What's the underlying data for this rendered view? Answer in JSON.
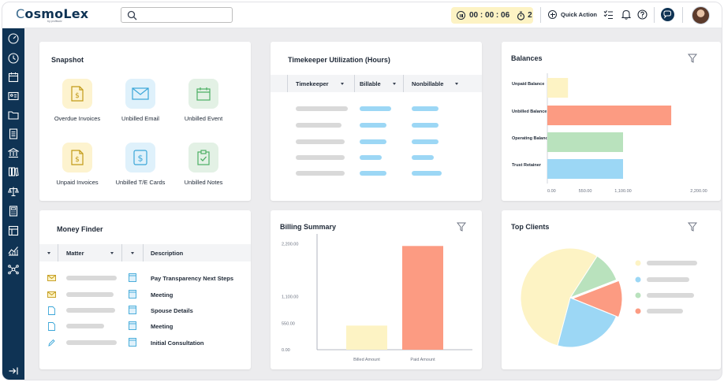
{
  "brand": {
    "logo_text": "CosmoLex",
    "logo_sub": "by profitsolv"
  },
  "topbar": {
    "search_placeholder": "",
    "timer": "00 : 00 : 06",
    "timer_count": "2",
    "quick_action_label": "Quick Action"
  },
  "sidebar": {
    "items": [
      "dashboard-icon",
      "clock-icon",
      "calendar-icon",
      "contacts-icon",
      "folder-icon",
      "document-icon",
      "bank-icon",
      "library-icon",
      "scale-icon",
      "calculator-icon",
      "layout-icon",
      "analytics-icon",
      "network-icon"
    ],
    "bottom": "expand-icon"
  },
  "snapshot": {
    "title": "Snapshot",
    "tiles": [
      {
        "label": "Overdue Invoices",
        "icon": "invoice-icon",
        "color": "#fdf3cf"
      },
      {
        "label": "Unbilled Email",
        "icon": "email-icon",
        "color": "#dff1fb"
      },
      {
        "label": "Unbilled Event",
        "icon": "calendar-icon",
        "color": "#e3f1e5"
      },
      {
        "label": "Unpaid Invoices",
        "icon": "invoice-icon",
        "color": "#fdf3cf"
      },
      {
        "label": "Unbilled T/E Cards",
        "icon": "dollar-card-icon",
        "color": "#dff1fb"
      },
      {
        "label": "Unbilled Notes",
        "icon": "clipboard-icon",
        "color": "#e3f1e5"
      }
    ]
  },
  "timekeeper": {
    "title": "Timekeeper Utilization (Hours)",
    "columns": [
      "Timekeeper",
      "Billable",
      "Nonbillable"
    ]
  },
  "balances": {
    "title": "Balances",
    "chart_data": {
      "type": "bar",
      "orientation": "horizontal",
      "categories": [
        "Unpaid Balance",
        "Unbilled Balance",
        "Operating Balance",
        "Trust Retainer"
      ],
      "values": [
        300,
        1800,
        1100,
        1100
      ],
      "colors": [
        "#fdf3c4",
        "#fc9b82",
        "#b9e2bd",
        "#9cd7f5"
      ],
      "xlim": [
        0,
        2200
      ],
      "xticks": [
        "0.00",
        "550.00",
        "1,100.00",
        "2,200.00"
      ]
    }
  },
  "money_finder": {
    "title": "Money Finder",
    "columns": [
      "Matter",
      "Description"
    ],
    "rows": [
      {
        "icon": "email-icon",
        "description": "Pay Transparency Next Steps"
      },
      {
        "icon": "email-icon",
        "description": "Meeting"
      },
      {
        "icon": "file-icon",
        "description": "Spouse Details"
      },
      {
        "icon": "file-icon",
        "description": "Meeting"
      },
      {
        "icon": "pencil-icon",
        "description": "Initial Consultation"
      }
    ]
  },
  "billing_summary": {
    "title": "Billing Summary",
    "chart_data": {
      "type": "bar",
      "categories": [
        "Billed Amount",
        "Paid Amount"
      ],
      "values": [
        500,
        2150
      ],
      "colors": [
        "#fdf3c4",
        "#fc9b82"
      ],
      "ylim": [
        0,
        2400
      ],
      "yticks": [
        "0.00",
        "550.00",
        "1,100.00",
        "2,200.00"
      ]
    }
  },
  "top_clients": {
    "title": "Top Clients",
    "chart_data": {
      "type": "pie",
      "values": [
        55,
        23,
        12,
        10
      ],
      "colors": [
        "#fdf3c4",
        "#9cd7f5",
        "#fc9b82",
        "#b9e2bd"
      ]
    }
  }
}
